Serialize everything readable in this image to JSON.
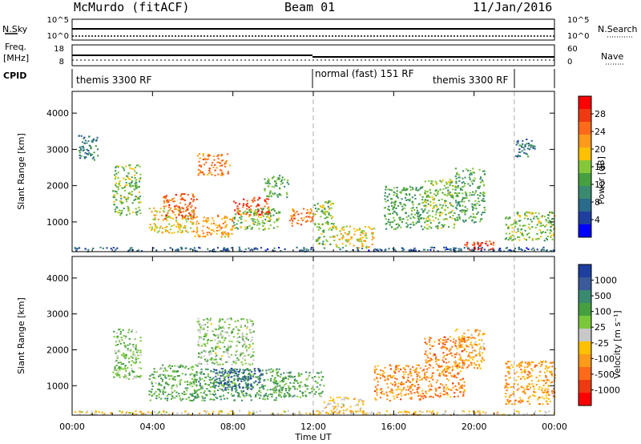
{
  "header": {
    "title": "McMurdo (fitACF)",
    "beam": "Beam 01",
    "date": "11/Jan/2016"
  },
  "nsky_panel": {
    "left_label": "N.Sky",
    "left_ticks": [
      "10^5",
      "10^0"
    ],
    "right_ticks": [
      "10^5",
      "10^0"
    ],
    "right_label": "N.Search"
  },
  "freq_panel": {
    "left_label_line1": "Freq.",
    "left_label_line2": "[MHz]",
    "left_ticks": [
      "18",
      "8"
    ],
    "right_ticks": [
      "60",
      "0"
    ],
    "right_label": "Nave"
  },
  "cpid": {
    "label": "CPID",
    "segments": [
      "themis 3300 RF",
      "normal (fast) 151 RF",
      "themis 3300 RF"
    ]
  },
  "x_axis": {
    "label": "Time UT",
    "ticks": [
      "00:00",
      "04:00",
      "08:00",
      "12:00",
      "16:00",
      "20:00",
      "00:00"
    ]
  },
  "power_colorbar": {
    "label": "Power [dB]",
    "ticks": [
      "28",
      "24",
      "20",
      "16",
      "12",
      "8",
      "4"
    ],
    "colors": [
      "#ff0000",
      "#ee3a10",
      "#ff6a1a",
      "#ff9a1a",
      "#ffc000",
      "#84c83a",
      "#46a040",
      "#3a8a70",
      "#2a6a8a",
      "#1e3ea0",
      "#0000ff"
    ]
  },
  "velocity_colorbar": {
    "label": "Velocity [m s⁻¹]",
    "ticks": [
      "1000",
      "500",
      "100",
      "25",
      "-25",
      "-100",
      "-500",
      "-1000"
    ],
    "colors": [
      "#1e3ea0",
      "#3a5a9a",
      "#3a8a70",
      "#46a040",
      "#7ac83a",
      "#c8c8c8",
      "#ffc000",
      "#ff9a1a",
      "#ff6a1a",
      "#ee3a10",
      "#ff0000"
    ]
  },
  "chart_data": [
    {
      "type": "heatmap",
      "title": "Power",
      "xlabel": "",
      "ylabel": "Slant Range [km]",
      "x_ticks": [
        "00:00",
        "04:00",
        "08:00",
        "12:00",
        "16:00",
        "20:00",
        "00:00"
      ],
      "y_ticks": [
        "1000",
        "2000",
        "3000",
        "4000"
      ],
      "xlim": [
        0,
        24
      ],
      "ylim": [
        180,
        4600
      ],
      "z_label": "Power [dB]",
      "z_range": [
        0,
        30
      ],
      "blobs": [
        {
          "t": [
            0.0,
            24.0
          ],
          "r": [
            200,
            320
          ],
          "z": 6
        },
        {
          "t": [
            0.3,
            1.3
          ],
          "r": [
            2700,
            3400
          ],
          "z": 9
        },
        {
          "t": [
            2.0,
            3.4
          ],
          "r": [
            1200,
            2600
          ],
          "z": 14
        },
        {
          "t": [
            3.8,
            6.0
          ],
          "r": [
            700,
            1400
          ],
          "z": 18
        },
        {
          "t": [
            4.5,
            6.2
          ],
          "r": [
            1100,
            1800
          ],
          "z": 24
        },
        {
          "t": [
            6.2,
            7.8
          ],
          "r": [
            2300,
            2900
          ],
          "z": 22
        },
        {
          "t": [
            6.0,
            8.0
          ],
          "r": [
            600,
            1200
          ],
          "z": 20
        },
        {
          "t": [
            8.0,
            9.8
          ],
          "r": [
            1200,
            1700
          ],
          "z": 26
        },
        {
          "t": [
            8.0,
            10.3
          ],
          "r": [
            800,
            1400
          ],
          "z": 14
        },
        {
          "t": [
            9.5,
            10.8
          ],
          "r": [
            1700,
            2300
          ],
          "z": 12
        },
        {
          "t": [
            10.8,
            12.0
          ],
          "r": [
            900,
            1400
          ],
          "z": 22
        },
        {
          "t": [
            12.0,
            13.0
          ],
          "r": [
            400,
            1600
          ],
          "z": 14
        },
        {
          "t": [
            13.0,
            15.0
          ],
          "r": [
            300,
            900
          ],
          "z": 18
        },
        {
          "t": [
            15.5,
            17.5
          ],
          "r": [
            800,
            2000
          ],
          "z": 12
        },
        {
          "t": [
            17.5,
            19.0
          ],
          "r": [
            800,
            2200
          ],
          "z": 14
        },
        {
          "t": [
            19.0,
            20.5
          ],
          "r": [
            1000,
            2500
          ],
          "z": 12
        },
        {
          "t": [
            19.5,
            21.0
          ],
          "r": [
            250,
            500
          ],
          "z": 26
        },
        {
          "t": [
            21.5,
            24.0
          ],
          "r": [
            500,
            1300
          ],
          "z": 14
        },
        {
          "t": [
            22.0,
            23.0
          ],
          "r": [
            2800,
            3300
          ],
          "z": 8
        }
      ]
    },
    {
      "type": "heatmap",
      "title": "Velocity",
      "xlabel": "Time UT",
      "ylabel": "Slant Range [km]",
      "x_ticks": [
        "00:00",
        "04:00",
        "08:00",
        "12:00",
        "16:00",
        "20:00",
        "00:00"
      ],
      "y_ticks": [
        "1000",
        "2000",
        "3000",
        "4000"
      ],
      "xlim": [
        0,
        24
      ],
      "ylim": [
        180,
        4600
      ],
      "z_label": "Velocity [m s⁻¹]",
      "z_range": [
        -1000,
        1000
      ],
      "blobs": [
        {
          "t": [
            0.0,
            12.0
          ],
          "r": [
            200,
            320
          ],
          "z": -100
        },
        {
          "t": [
            12.0,
            24.0
          ],
          "r": [
            200,
            320
          ],
          "z": -150
        },
        {
          "t": [
            2.0,
            3.4
          ],
          "r": [
            1200,
            2600
          ],
          "z": 200
        },
        {
          "t": [
            3.8,
            6.2
          ],
          "r": [
            600,
            1600
          ],
          "z": 300
        },
        {
          "t": [
            6.2,
            9.0
          ],
          "r": [
            1600,
            2900
          ],
          "z": 150
        },
        {
          "t": [
            6.0,
            10.5
          ],
          "r": [
            600,
            1500
          ],
          "z": 400
        },
        {
          "t": [
            7.0,
            9.5
          ],
          "r": [
            900,
            1500
          ],
          "z": 700
        },
        {
          "t": [
            10.0,
            12.5
          ],
          "r": [
            700,
            1400
          ],
          "z": 300
        },
        {
          "t": [
            12.5,
            14.5
          ],
          "r": [
            250,
            700
          ],
          "z": -150
        },
        {
          "t": [
            15.0,
            17.5
          ],
          "r": [
            600,
            1600
          ],
          "z": -400
        },
        {
          "t": [
            17.5,
            19.5
          ],
          "r": [
            700,
            2400
          ],
          "z": -450
        },
        {
          "t": [
            19.0,
            20.5
          ],
          "r": [
            1500,
            2600
          ],
          "z": -300
        },
        {
          "t": [
            21.5,
            24.0
          ],
          "r": [
            500,
            1700
          ],
          "z": -350
        }
      ]
    }
  ]
}
